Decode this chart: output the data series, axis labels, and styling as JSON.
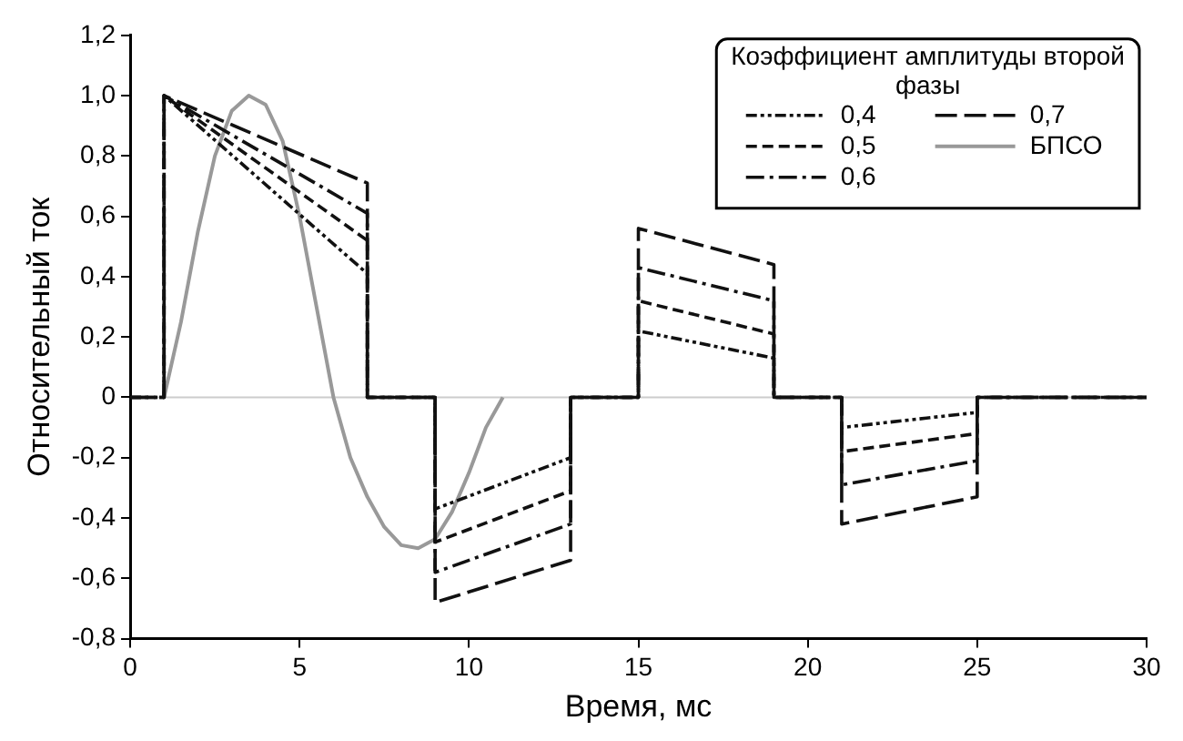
{
  "chart_data": {
    "type": "line",
    "xlabel": "Время, мс",
    "ylabel": "Относительный ток",
    "legend_title": "Коэффициент амплитуды второй фазы",
    "xlim": [
      0,
      30
    ],
    "xticks": [
      0,
      5,
      10,
      15,
      20,
      25,
      30
    ],
    "ylim": [
      -0.8,
      1.2
    ],
    "yticks": [
      {
        "value": -0.8,
        "label": "-0,8"
      },
      {
        "value": -0.6,
        "label": "-0,6"
      },
      {
        "value": -0.4,
        "label": "-0,4"
      },
      {
        "value": -0.2,
        "label": "-0,2"
      },
      {
        "value": 0,
        "label": "0"
      },
      {
        "value": 0.2,
        "label": "0,2"
      },
      {
        "value": 0.4,
        "label": "0,4"
      },
      {
        "value": 0.6,
        "label": "0,6"
      },
      {
        "value": 0.8,
        "label": "0,8"
      },
      {
        "value": 1.0,
        "label": "1,0"
      },
      {
        "value": 1.2,
        "label": "1,2"
      }
    ],
    "grid": false,
    "legend": "top right",
    "marker": "none",
    "ref_lines": [
      {
        "axis": "y",
        "value": 0,
        "color": "#cccccc"
      }
    ],
    "series": [
      {
        "name": "0,4",
        "color": "#111111",
        "line_style": "dashed",
        "x": [
          0,
          1,
          1,
          7,
          7,
          9,
          9,
          13,
          13,
          15,
          15,
          19,
          19,
          21,
          21,
          25,
          25,
          30
        ],
        "values": [
          0,
          0,
          1.0,
          0.41,
          0,
          0,
          -0.37,
          -0.2,
          0,
          0,
          0.22,
          0.13,
          0,
          0,
          -0.1,
          -0.05,
          0,
          0
        ]
      },
      {
        "name": "0,5",
        "color": "#111111",
        "line_style": "dashed",
        "x": [
          0,
          1,
          1,
          7,
          7,
          9,
          9,
          13,
          13,
          15,
          15,
          19,
          19,
          21,
          21,
          25,
          25,
          30
        ],
        "values": [
          0,
          0,
          1.0,
          0.52,
          0,
          0,
          -0.48,
          -0.31,
          0,
          0,
          0.32,
          0.21,
          0,
          0,
          -0.18,
          -0.12,
          0,
          0
        ]
      },
      {
        "name": "0,6",
        "color": "#111111",
        "line_style": "dashed",
        "x": [
          0,
          1,
          1,
          7,
          7,
          9,
          9,
          13,
          13,
          15,
          15,
          19,
          19,
          21,
          21,
          25,
          25,
          30
        ],
        "values": [
          0,
          0,
          1.0,
          0.61,
          0,
          0,
          -0.58,
          -0.42,
          0,
          0,
          0.43,
          0.32,
          0,
          0,
          -0.29,
          -0.21,
          0,
          0
        ]
      },
      {
        "name": "0,7",
        "color": "#111111",
        "line_style": "dashed",
        "x": [
          0,
          1,
          1,
          7,
          7,
          9,
          9,
          13,
          13,
          15,
          15,
          19,
          19,
          21,
          21,
          25,
          25,
          30
        ],
        "values": [
          0,
          0,
          1.0,
          0.71,
          0,
          0,
          -0.68,
          -0.54,
          0,
          0,
          0.56,
          0.44,
          0,
          0,
          -0.42,
          -0.33,
          0,
          0
        ]
      },
      {
        "name": "БПСО",
        "color": "#999999",
        "line_style": "solid",
        "x": [
          1,
          1.5,
          2,
          2.5,
          3,
          3.5,
          4,
          4.5,
          5,
          5.5,
          6,
          6.5,
          7,
          7.5,
          8,
          8.5,
          9,
          9.5,
          10,
          10.5,
          11
        ],
        "values": [
          0,
          0.25,
          0.55,
          0.8,
          0.95,
          1.0,
          0.97,
          0.85,
          0.6,
          0.3,
          0,
          -0.2,
          -0.33,
          -0.43,
          -0.49,
          -0.5,
          -0.47,
          -0.38,
          -0.25,
          -0.1,
          0
        ]
      }
    ]
  }
}
